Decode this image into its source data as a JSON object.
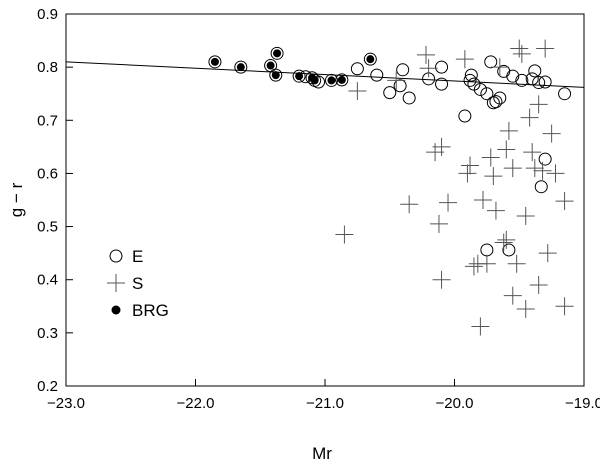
{
  "chart_data": {
    "type": "scatter",
    "xlabel": "Mr",
    "ylabel": "g − r",
    "xlim": [
      -23.0,
      -19.0
    ],
    "ylim": [
      0.2,
      0.9
    ],
    "x_ticks": [
      -23.0,
      -22.0,
      -21.0,
      -20.0,
      -19.0
    ],
    "x_tick_labels": [
      "−23.0",
      "−22.0",
      "−21.0",
      "−20.0",
      "−19.0"
    ],
    "y_ticks": [
      0.2,
      0.3,
      0.4,
      0.5,
      0.6,
      0.7,
      0.8,
      0.9
    ],
    "y_tick_labels": [
      "0.2",
      "0.3",
      "0.4",
      "0.5",
      "0.6",
      "0.7",
      "0.8",
      "0.9"
    ],
    "grid": false,
    "legend_position": "middle-left",
    "fit_line": {
      "x": [
        -23.0,
        -19.0
      ],
      "y": [
        0.81,
        0.762
      ]
    },
    "series": [
      {
        "name": "E",
        "marker": "open-circle",
        "points": [
          [
            -21.15,
            0.782
          ],
          [
            -21.05,
            0.772
          ],
          [
            -20.75,
            0.797
          ],
          [
            -20.6,
            0.785
          ],
          [
            -20.5,
            0.752
          ],
          [
            -20.42,
            0.765
          ],
          [
            -20.4,
            0.795
          ],
          [
            -20.35,
            0.742
          ],
          [
            -20.2,
            0.778
          ],
          [
            -20.1,
            0.8
          ],
          [
            -20.1,
            0.768
          ],
          [
            -19.92,
            0.708
          ],
          [
            -19.88,
            0.775
          ],
          [
            -19.87,
            0.785
          ],
          [
            -19.85,
            0.768
          ],
          [
            -19.8,
            0.758
          ],
          [
            -19.75,
            0.75
          ],
          [
            -19.72,
            0.81
          ],
          [
            -19.7,
            0.733
          ],
          [
            -19.68,
            0.735
          ],
          [
            -19.65,
            0.742
          ],
          [
            -19.62,
            0.792
          ],
          [
            -19.55,
            0.783
          ],
          [
            -19.48,
            0.775
          ],
          [
            -19.4,
            0.778
          ],
          [
            -19.38,
            0.793
          ],
          [
            -19.35,
            0.771
          ],
          [
            -19.3,
            0.772
          ],
          [
            -19.33,
            0.575
          ],
          [
            -19.3,
            0.627
          ],
          [
            -19.15,
            0.75
          ],
          [
            -19.75,
            0.456
          ],
          [
            -19.58,
            0.456
          ]
        ]
      },
      {
        "name": "S",
        "marker": "plus",
        "points": [
          [
            -20.85,
            0.485
          ],
          [
            -20.75,
            0.755
          ],
          [
            -20.45,
            0.775
          ],
          [
            -20.35,
            0.542
          ],
          [
            -20.22,
            0.823
          ],
          [
            -20.2,
            0.798
          ],
          [
            -20.05,
            0.545
          ],
          [
            -20.15,
            0.64
          ],
          [
            -20.1,
            0.65
          ],
          [
            -20.12,
            0.505
          ],
          [
            -20.1,
            0.4
          ],
          [
            -19.92,
            0.815
          ],
          [
            -19.9,
            0.6
          ],
          [
            -19.88,
            0.615
          ],
          [
            -19.85,
            0.425
          ],
          [
            -19.82,
            0.43
          ],
          [
            -19.8,
            0.312
          ],
          [
            -19.78,
            0.55
          ],
          [
            -19.75,
            0.43
          ],
          [
            -19.72,
            0.63
          ],
          [
            -19.7,
            0.595
          ],
          [
            -19.68,
            0.53
          ],
          [
            -19.65,
            0.8
          ],
          [
            -19.62,
            0.47
          ],
          [
            -19.6,
            0.475
          ],
          [
            -19.6,
            0.645
          ],
          [
            -19.58,
            0.68
          ],
          [
            -19.55,
            0.61
          ],
          [
            -19.55,
            0.37
          ],
          [
            -19.52,
            0.43
          ],
          [
            -19.5,
            0.835
          ],
          [
            -19.48,
            0.825
          ],
          [
            -19.45,
            0.345
          ],
          [
            -19.45,
            0.52
          ],
          [
            -19.42,
            0.705
          ],
          [
            -19.4,
            0.64
          ],
          [
            -19.38,
            0.61
          ],
          [
            -19.35,
            0.73
          ],
          [
            -19.35,
            0.39
          ],
          [
            -19.32,
            0.605
          ],
          [
            -19.3,
            0.835
          ],
          [
            -19.28,
            0.45
          ],
          [
            -19.25,
            0.675
          ],
          [
            -19.22,
            0.6
          ],
          [
            -19.15,
            0.35
          ],
          [
            -19.15,
            0.548
          ]
        ]
      },
      {
        "name": "BRG",
        "marker": "filled-circle",
        "points": [
          [
            -21.85,
            0.81
          ],
          [
            -21.65,
            0.8
          ],
          [
            -21.42,
            0.803
          ],
          [
            -21.38,
            0.785
          ],
          [
            -21.37,
            0.826
          ],
          [
            -21.2,
            0.783
          ],
          [
            -21.1,
            0.78
          ],
          [
            -21.08,
            0.775
          ],
          [
            -20.95,
            0.775
          ],
          [
            -20.87,
            0.776
          ],
          [
            -20.65,
            0.815
          ]
        ]
      }
    ]
  }
}
